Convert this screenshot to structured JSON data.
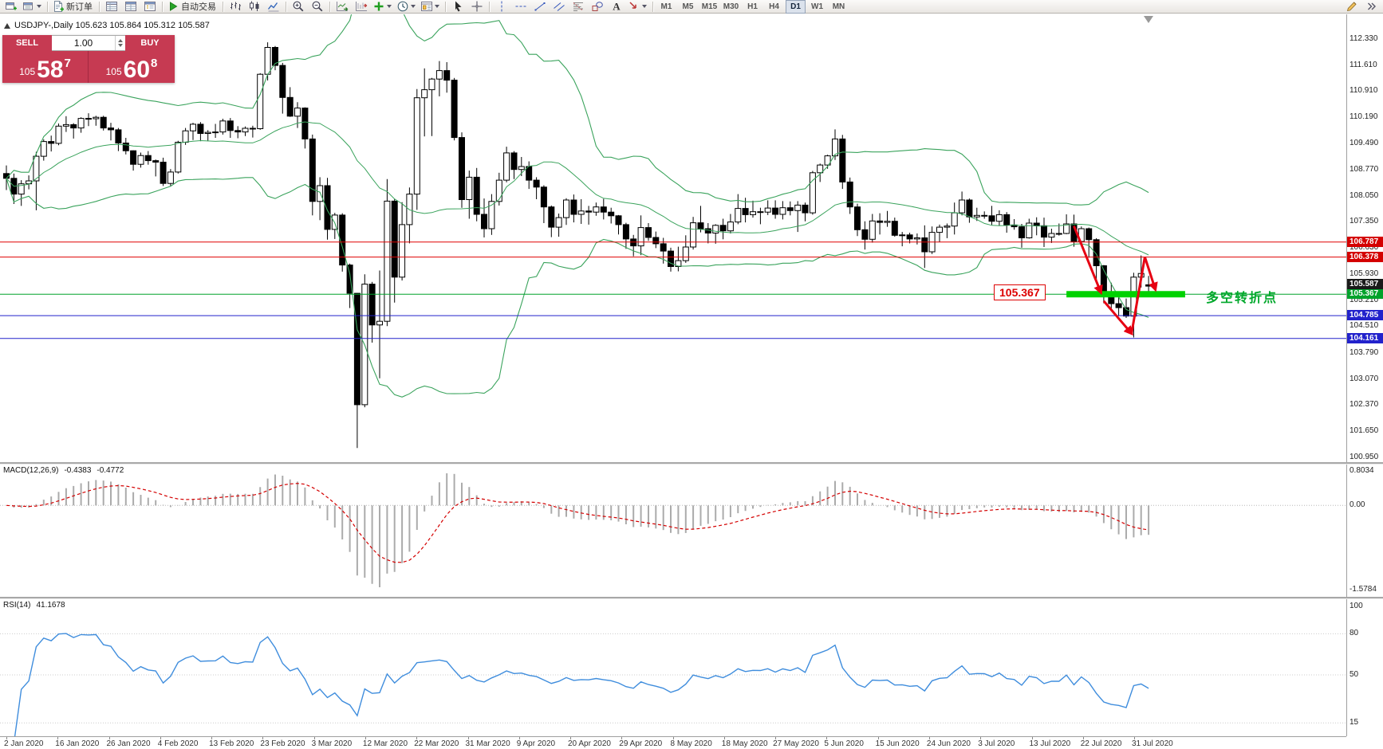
{
  "chart_title": "USDJPY-,Daily 105.623 105.864 105.312 105.587",
  "toolbar": {
    "groups": [
      {
        "items": [
          {
            "name": "new-chart",
            "icon": "window-plus"
          },
          {
            "name": "profiles",
            "icon": "window-list",
            "caret": true
          }
        ]
      },
      {
        "items": [
          {
            "name": "new-order",
            "icon": "doc-plus",
            "label": "新订单"
          }
        ]
      },
      {
        "items": [
          {
            "name": "market-watch",
            "icon": "table"
          },
          {
            "name": "data-window",
            "icon": "data-window"
          },
          {
            "name": "navigator",
            "icon": "navigator"
          }
        ]
      },
      {
        "items": [
          {
            "name": "autotrading",
            "icon": "play-green",
            "label": "自动交易"
          }
        ]
      },
      {
        "items": [
          {
            "name": "bar-chart",
            "icon": "bars"
          },
          {
            "name": "candlestick-chart",
            "icon": "candles"
          },
          {
            "name": "line-chart",
            "icon": "linechart"
          }
        ]
      },
      {
        "items": [
          {
            "name": "zoom-in",
            "icon": "zoom-in"
          },
          {
            "name": "zoom-out",
            "icon": "zoom-out"
          }
        ]
      },
      {
        "items": [
          {
            "name": "auto-scroll",
            "icon": "autoscroll"
          },
          {
            "name": "chart-shift",
            "icon": "chartshift"
          },
          {
            "name": "indicators",
            "icon": "indicator-plus",
            "caret": true
          },
          {
            "name": "periods",
            "icon": "clock",
            "caret": true
          },
          {
            "name": "templates",
            "icon": "template",
            "caret": true
          }
        ]
      },
      {
        "items": [
          {
            "name": "cursor",
            "icon": "cursor"
          },
          {
            "name": "crosshair",
            "icon": "crosshair"
          }
        ]
      },
      {
        "items": [
          {
            "name": "vertical-line",
            "icon": "vline"
          },
          {
            "name": "horizontal-line",
            "icon": "hline"
          },
          {
            "name": "trendline",
            "icon": "trendline"
          },
          {
            "name": "equidistant-channel",
            "icon": "channel"
          },
          {
            "name": "fibonacci-retracement",
            "icon": "fibo"
          },
          {
            "name": "shapes",
            "icon": "shapes"
          },
          {
            "name": "text-tool",
            "icon": "text-a"
          },
          {
            "name": "arrow-tool",
            "icon": "arrowobj",
            "caret": true
          }
        ]
      }
    ],
    "timeframes": [
      "M1",
      "M5",
      "M15",
      "M30",
      "H1",
      "H4",
      "D1",
      "W1",
      "MN"
    ],
    "active_timeframe": "D1",
    "right_items": [
      {
        "name": "objects-list",
        "icon": "pencil"
      },
      {
        "name": "toolbar-more",
        "icon": "chevrons"
      }
    ]
  },
  "trade_panel": {
    "sell_label": "SELL",
    "buy_label": "BUY",
    "volume": "1.00",
    "bid": {
      "int": "105",
      "big": "58",
      "pip": "7"
    },
    "ask": {
      "int": "105",
      "big": "60",
      "pip": "8"
    }
  },
  "chart_data": {
    "type": "candlestick",
    "symbol": "USDJPY-",
    "period": "Daily",
    "ohlc_display": {
      "open": "105.623",
      "high": "105.864",
      "low": "105.312",
      "close": "105.587"
    },
    "y_ticks": [
      "112.330",
      "111.610",
      "110.910",
      "110.190",
      "109.490",
      "108.770",
      "108.050",
      "107.350",
      "106.630",
      "105.930",
      "105.210",
      "104.510",
      "103.790",
      "103.070",
      "102.370",
      "101.650",
      "100.950"
    ],
    "x_labels": [
      "2 Jan 2020",
      "16 Jan 2020",
      "26 Jan 2020",
      "4 Feb 2020",
      "13 Feb 2020",
      "23 Feb 2020",
      "3 Mar 2020",
      "12 Mar 2020",
      "22 Mar 2020",
      "31 Mar 2020",
      "9 Apr 2020",
      "20 Apr 2020",
      "29 Apr 2020",
      "8 May 2020",
      "18 May 2020",
      "27 May 2020",
      "5 Jun 2020",
      "15 Jun 2020",
      "24 Jun 2020",
      "3 Jul 2020",
      "13 Jul 2020",
      "22 Jul 2020",
      "31 Jul 2020"
    ],
    "candles": [
      [
        108.65,
        108.87,
        108.2,
        108.52
      ],
      [
        108.52,
        108.65,
        107.82,
        108.09
      ],
      [
        108.09,
        108.47,
        107.77,
        108.37
      ],
      [
        108.37,
        108.6,
        108.22,
        108.45
      ],
      [
        108.45,
        109.24,
        107.65,
        109.12
      ],
      [
        109.12,
        109.58,
        109.0,
        109.52
      ],
      [
        109.52,
        109.68,
        109.25,
        109.47
      ],
      [
        109.47,
        110.01,
        109.42,
        109.94
      ],
      [
        109.94,
        110.21,
        109.78,
        109.98
      ],
      [
        109.98,
        110.02,
        109.6,
        109.89
      ],
      [
        109.89,
        110.18,
        109.76,
        110.15
      ],
      [
        110.15,
        110.29,
        109.94,
        110.14
      ],
      [
        110.14,
        110.22,
        109.95,
        110.18
      ],
      [
        110.18,
        110.22,
        109.82,
        109.89
      ],
      [
        109.89,
        110.03,
        109.55,
        109.84
      ],
      [
        109.84,
        109.89,
        109.26,
        109.48
      ],
      [
        109.48,
        109.62,
        109.17,
        109.27
      ],
      [
        109.27,
        109.28,
        108.73,
        108.9
      ],
      [
        108.9,
        109.22,
        108.81,
        109.14
      ],
      [
        109.14,
        109.26,
        108.89,
        109.0
      ],
      [
        109.0,
        109.03,
        108.57,
        108.96
      ],
      [
        108.96,
        109.08,
        108.31,
        108.38
      ],
      [
        108.38,
        108.77,
        108.3,
        108.69
      ],
      [
        108.69,
        109.54,
        108.65,
        109.5
      ],
      [
        109.5,
        109.89,
        109.43,
        109.81
      ],
      [
        109.81,
        110.03,
        109.56,
        109.99
      ],
      [
        109.99,
        110.05,
        109.53,
        109.74
      ],
      [
        109.74,
        109.83,
        109.53,
        109.77
      ],
      [
        109.77,
        110.0,
        109.62,
        109.78
      ],
      [
        109.78,
        110.14,
        109.71,
        110.08
      ],
      [
        110.08,
        110.16,
        109.62,
        109.82
      ],
      [
        109.82,
        109.94,
        109.61,
        109.78
      ],
      [
        109.78,
        109.93,
        109.67,
        109.88
      ],
      [
        109.88,
        109.95,
        109.63,
        109.87
      ],
      [
        109.87,
        111.38,
        109.84,
        111.35
      ],
      [
        111.35,
        112.22,
        111.18,
        112.08
      ],
      [
        112.08,
        112.12,
        111.46,
        111.59
      ],
      [
        111.59,
        111.66,
        110.28,
        110.72
      ],
      [
        110.72,
        111.0,
        110.19,
        110.21
      ],
      [
        110.21,
        110.59,
        109.89,
        110.43
      ],
      [
        110.43,
        110.45,
        109.33,
        109.59
      ],
      [
        109.59,
        109.71,
        107.51,
        107.89
      ],
      [
        107.89,
        108.55,
        107.38,
        108.32
      ],
      [
        108.32,
        108.53,
        106.85,
        107.13
      ],
      [
        107.13,
        107.58,
        106.87,
        107.52
      ],
      [
        107.52,
        107.57,
        105.98,
        106.16
      ],
      [
        106.16,
        106.2,
        104.99,
        105.39
      ],
      [
        105.39,
        105.4,
        101.18,
        102.36
      ],
      [
        102.36,
        105.91,
        102.29,
        105.64
      ],
      [
        105.64,
        105.7,
        104.05,
        104.53
      ],
      [
        104.53,
        106.01,
        103.08,
        104.63
      ],
      [
        104.63,
        108.5,
        104.5,
        107.9
      ],
      [
        107.9,
        107.95,
        105.14,
        105.83
      ],
      [
        105.83,
        107.87,
        105.74,
        107.26
      ],
      [
        107.26,
        108.27,
        106.75,
        108.09
      ],
      [
        108.09,
        110.95,
        107.66,
        110.71
      ],
      [
        110.71,
        111.51,
        109.66,
        110.93
      ],
      [
        110.93,
        111.25,
        109.67,
        111.22
      ],
      [
        111.22,
        111.71,
        110.75,
        111.45
      ],
      [
        111.45,
        111.68,
        110.85,
        111.19
      ],
      [
        111.19,
        111.25,
        109.55,
        109.63
      ],
      [
        109.63,
        109.77,
        107.72,
        107.94
      ],
      [
        107.94,
        108.73,
        107.42,
        108.55
      ],
      [
        108.55,
        108.8,
        107.35,
        107.54
      ],
      [
        107.54,
        107.97,
        106.91,
        107.15
      ],
      [
        107.15,
        108.09,
        106.98,
        107.89
      ],
      [
        107.89,
        108.67,
        107.78,
        108.47
      ],
      [
        108.47,
        109.38,
        108.41,
        109.21
      ],
      [
        109.21,
        109.26,
        108.5,
        108.76
      ],
      [
        108.76,
        109.1,
        108.58,
        108.84
      ],
      [
        108.84,
        108.98,
        108.23,
        108.47
      ],
      [
        108.47,
        108.55,
        107.95,
        108.28
      ],
      [
        108.28,
        108.33,
        107.3,
        107.74
      ],
      [
        107.74,
        107.78,
        106.92,
        107.19
      ],
      [
        107.19,
        107.56,
        106.93,
        107.45
      ],
      [
        107.45,
        107.98,
        107.25,
        107.93
      ],
      [
        107.93,
        108.08,
        107.32,
        107.54
      ],
      [
        107.54,
        107.95,
        107.28,
        107.63
      ],
      [
        107.63,
        107.77,
        107.26,
        107.6
      ],
      [
        107.6,
        107.86,
        107.5,
        107.74
      ],
      [
        107.74,
        107.96,
        107.4,
        107.6
      ],
      [
        107.6,
        107.72,
        107.29,
        107.5
      ],
      [
        107.5,
        107.52,
        106.99,
        107.26
      ],
      [
        107.26,
        107.31,
        106.6,
        106.87
      ],
      [
        106.87,
        106.98,
        106.4,
        106.68
      ],
      [
        106.68,
        107.51,
        106.43,
        107.18
      ],
      [
        107.18,
        107.3,
        106.82,
        106.91
      ],
      [
        106.91,
        107.07,
        106.62,
        106.74
      ],
      [
        106.74,
        106.9,
        106.2,
        106.54
      ],
      [
        106.54,
        106.63,
        105.98,
        106.12
      ],
      [
        106.12,
        106.66,
        105.99,
        106.28
      ],
      [
        106.28,
        106.97,
        106.22,
        106.65
      ],
      [
        106.65,
        107.47,
        106.58,
        107.31
      ],
      [
        107.31,
        107.77,
        107.05,
        107.15
      ],
      [
        107.15,
        107.3,
        106.75,
        107.03
      ],
      [
        107.03,
        107.27,
        106.74,
        107.24
      ],
      [
        107.24,
        107.42,
        106.86,
        107.09
      ],
      [
        107.09,
        107.55,
        107.02,
        107.33
      ],
      [
        107.33,
        108.09,
        107.27,
        107.7
      ],
      [
        107.7,
        107.99,
        107.32,
        107.53
      ],
      [
        107.53,
        107.91,
        107.45,
        107.61
      ],
      [
        107.61,
        107.72,
        107.27,
        107.6
      ],
      [
        107.6,
        107.92,
        107.52,
        107.71
      ],
      [
        107.71,
        107.92,
        107.42,
        107.54
      ],
      [
        107.54,
        107.9,
        107.4,
        107.72
      ],
      [
        107.72,
        107.89,
        107.51,
        107.64
      ],
      [
        107.64,
        107.9,
        107.06,
        107.79
      ],
      [
        107.79,
        107.86,
        107.35,
        107.58
      ],
      [
        107.58,
        108.72,
        107.53,
        108.67
      ],
      [
        108.67,
        108.92,
        108.42,
        108.88
      ],
      [
        108.88,
        109.16,
        108.78,
        109.13
      ],
      [
        109.13,
        109.85,
        109.02,
        109.59
      ],
      [
        109.59,
        109.7,
        108.23,
        108.42
      ],
      [
        108.42,
        108.54,
        107.55,
        107.74
      ],
      [
        107.74,
        107.83,
        106.95,
        107.12
      ],
      [
        107.12,
        107.35,
        106.58,
        106.86
      ],
      [
        106.86,
        107.55,
        106.77,
        107.36
      ],
      [
        107.36,
        107.57,
        106.99,
        107.32
      ],
      [
        107.32,
        107.63,
        107.2,
        107.35
      ],
      [
        107.35,
        107.45,
        106.93,
        106.97
      ],
      [
        106.97,
        107.06,
        106.67,
        106.98
      ],
      [
        106.98,
        107.04,
        106.75,
        106.87
      ],
      [
        106.87,
        107.02,
        106.72,
        106.9
      ],
      [
        106.9,
        107.24,
        106.08,
        106.52
      ],
      [
        106.52,
        107.21,
        106.46,
        107.05
      ],
      [
        107.05,
        107.26,
        106.78,
        107.19
      ],
      [
        107.19,
        107.29,
        106.89,
        107.22
      ],
      [
        107.22,
        107.86,
        106.99,
        107.58
      ],
      [
        107.58,
        108.16,
        107.51,
        107.93
      ],
      [
        107.93,
        107.97,
        107.31,
        107.47
      ],
      [
        107.47,
        107.72,
        107.36,
        107.51
      ],
      [
        107.51,
        107.62,
        107.42,
        107.5
      ],
      [
        107.5,
        107.77,
        107.25,
        107.35
      ],
      [
        107.35,
        107.65,
        107.23,
        107.53
      ],
      [
        107.53,
        107.6,
        107.04,
        107.25
      ],
      [
        107.25,
        107.41,
        107.12,
        107.2
      ],
      [
        107.2,
        107.28,
        106.63,
        106.9
      ],
      [
        106.9,
        107.42,
        106.88,
        107.3
      ],
      [
        107.3,
        107.46,
        106.97,
        107.23
      ],
      [
        107.23,
        107.45,
        106.65,
        106.92
      ],
      [
        106.92,
        107.15,
        106.76,
        107.02
      ],
      [
        107.02,
        107.29,
        106.96,
        107.02
      ],
      [
        107.02,
        107.54,
        107.0,
        107.28
      ],
      [
        107.28,
        107.53,
        106.66,
        106.8
      ],
      [
        106.8,
        107.21,
        106.73,
        107.15
      ],
      [
        107.15,
        107.18,
        106.36,
        106.85
      ],
      [
        106.85,
        106.89,
        105.68,
        106.14
      ],
      [
        106.14,
        106.16,
        105.12,
        105.37
      ],
      [
        105.37,
        105.68,
        104.95,
        105.11
      ],
      [
        105.11,
        105.32,
        104.77,
        105.0
      ],
      [
        105.0,
        105.25,
        104.72,
        104.77
      ],
      [
        104.77,
        105.95,
        104.19,
        105.83
      ],
      [
        105.83,
        106.42,
        105.55,
        105.93
      ],
      [
        105.623,
        105.864,
        105.312,
        105.587
      ]
    ],
    "bollinger": {
      "period": 20,
      "deviation": 2,
      "color": "#3aa35c"
    },
    "price_lines": [
      {
        "price": 106.787,
        "color": "#e00000",
        "label": "106.787",
        "label_bg": "#d40000"
      },
      {
        "price": 106.378,
        "color": "#e00000",
        "label": "106.378",
        "label_bg": "#d40000"
      },
      {
        "price": 105.367,
        "color": "#00a22b",
        "label": "105.367",
        "label_bg": "#00a22b"
      },
      {
        "price": 104.785,
        "color": "#2222cc",
        "label": "104.785",
        "label_bg": "#2222cc"
      },
      {
        "price": 104.161,
        "color": "#2222cc",
        "label": "104.161",
        "label_bg": "#2222cc"
      }
    ],
    "bid_marker": {
      "price": 105.587,
      "label": "105.587",
      "label_bg": "#1a1a1a"
    },
    "annotations": {
      "support_bar": {
        "price": 105.367,
        "i1": 142,
        "i2": 157.9,
        "color": "#00d200",
        "thickness": 8
      },
      "price_tag": {
        "text": "105.367",
        "color": "#dd0000"
      },
      "note_text": {
        "text": "多空转折点",
        "color": "#00a82b"
      },
      "arrow_color": "#e60012",
      "arrows": [
        {
          "i1": 143.0,
          "p1": 107.22,
          "i2": 146.6,
          "p2": 105.42,
          "head": true
        },
        {
          "i1": 147.0,
          "p1": 105.18,
          "i2": 150.7,
          "p2": 104.3,
          "head": true
        },
        {
          "i1": 150.7,
          "p1": 104.28,
          "i2": 152.5,
          "p2": 106.38,
          "head": false
        },
        {
          "i1": 152.5,
          "p1": 106.38,
          "i2": 153.9,
          "p2": 105.5,
          "head": true
        }
      ]
    },
    "macd": {
      "name": "MACD(12,26,9)",
      "value_main": "-0.4383",
      "value_signal": "-0.4772",
      "fast": 12,
      "slow": 26,
      "signal": 9,
      "axis_labels": [
        "0.8034",
        "0.00",
        "-1.5784"
      ],
      "hist_color": "#ababab",
      "signal_color": "#d40000"
    },
    "rsi": {
      "name": "RSI(14)",
      "value": "41.1678",
      "period": 14,
      "axis_labels": [
        "100",
        "80",
        "50",
        "15"
      ],
      "levels": [
        80,
        50,
        15
      ],
      "color": "#3f8ddd"
    }
  }
}
